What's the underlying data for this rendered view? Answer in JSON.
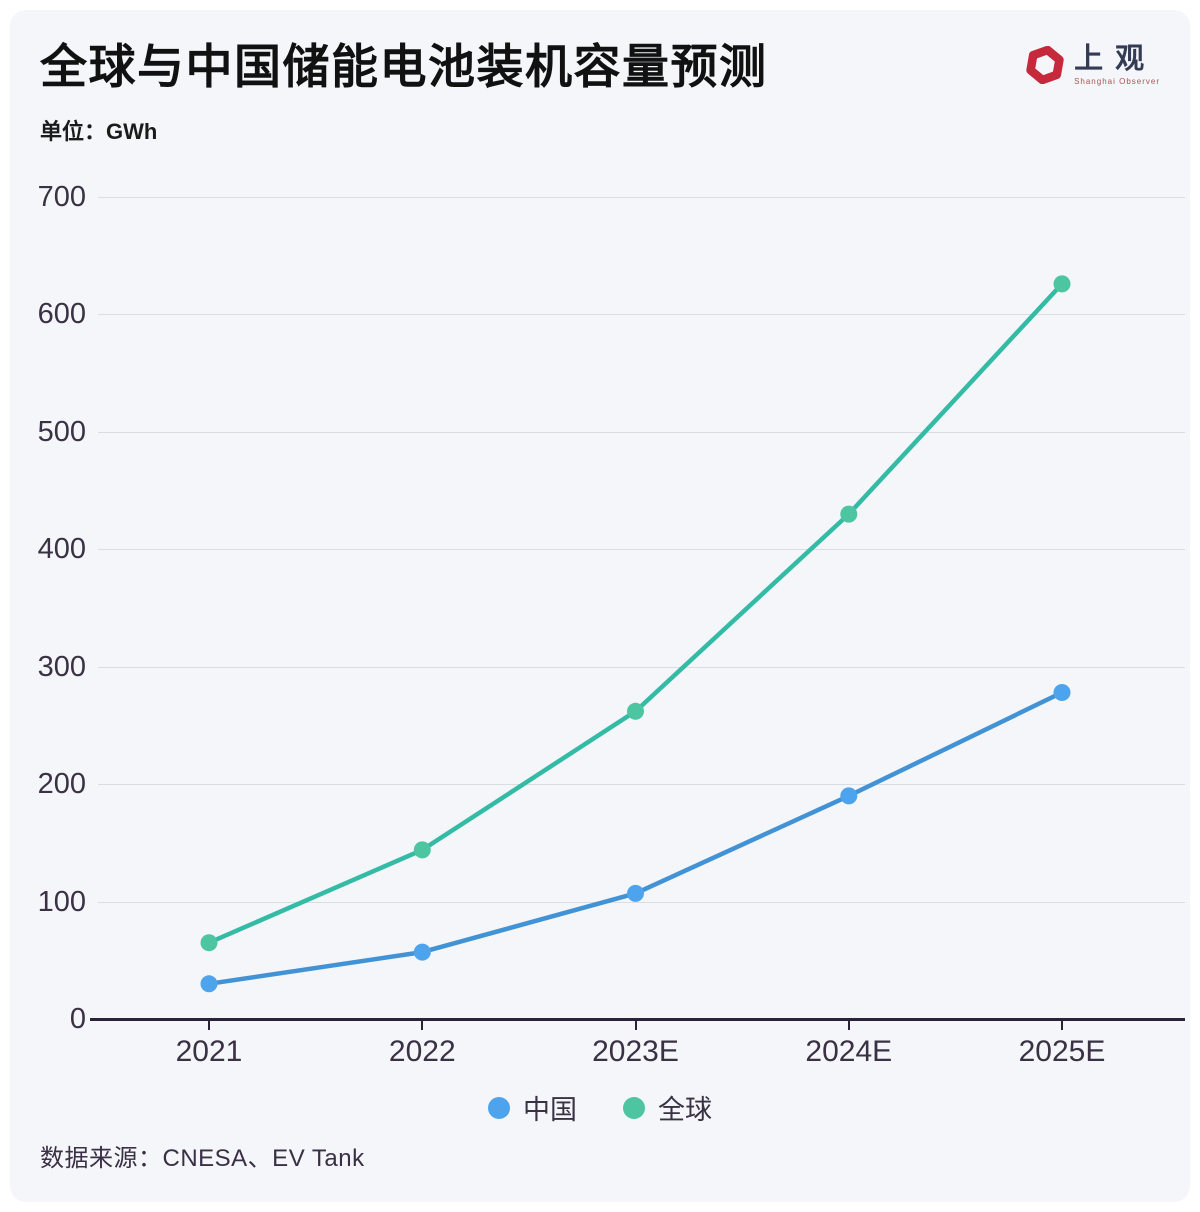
{
  "header": {
    "title": "全球与中国储能电池装机容量预测",
    "unit_label": "单位：GWh",
    "logo": {
      "text": "上观",
      "subtext": "Shanghai Observer"
    }
  },
  "chart_data": {
    "type": "line",
    "categories": [
      "2021",
      "2022",
      "2023E",
      "2024E",
      "2025E"
    ],
    "series": [
      {
        "name": "中国",
        "color": "#4292d6",
        "dot_color": "#4ea4ec",
        "values": [
          30,
          57,
          107,
          190,
          278
        ]
      },
      {
        "name": "全球",
        "color": "#34bba5",
        "dot_color": "#4cc5a0",
        "values": [
          65,
          144,
          262,
          430,
          626
        ]
      }
    ],
    "title": "全球与中国储能电池装机容量预测",
    "xlabel": "",
    "ylabel": "GWh",
    "ylim": [
      0,
      700
    ],
    "ytick_step": 100,
    "grid": true,
    "legend_position": "bottom"
  },
  "footer": {
    "source": "数据来源：CNESA、EV Tank"
  },
  "colors": {
    "card_bg": "#f4f6f9",
    "axis_text": "#3a3144",
    "gridline": "#dadde3",
    "axis_line": "#2b2138",
    "logo_red": "#c5293b",
    "logo_text_color": "#343b55"
  }
}
